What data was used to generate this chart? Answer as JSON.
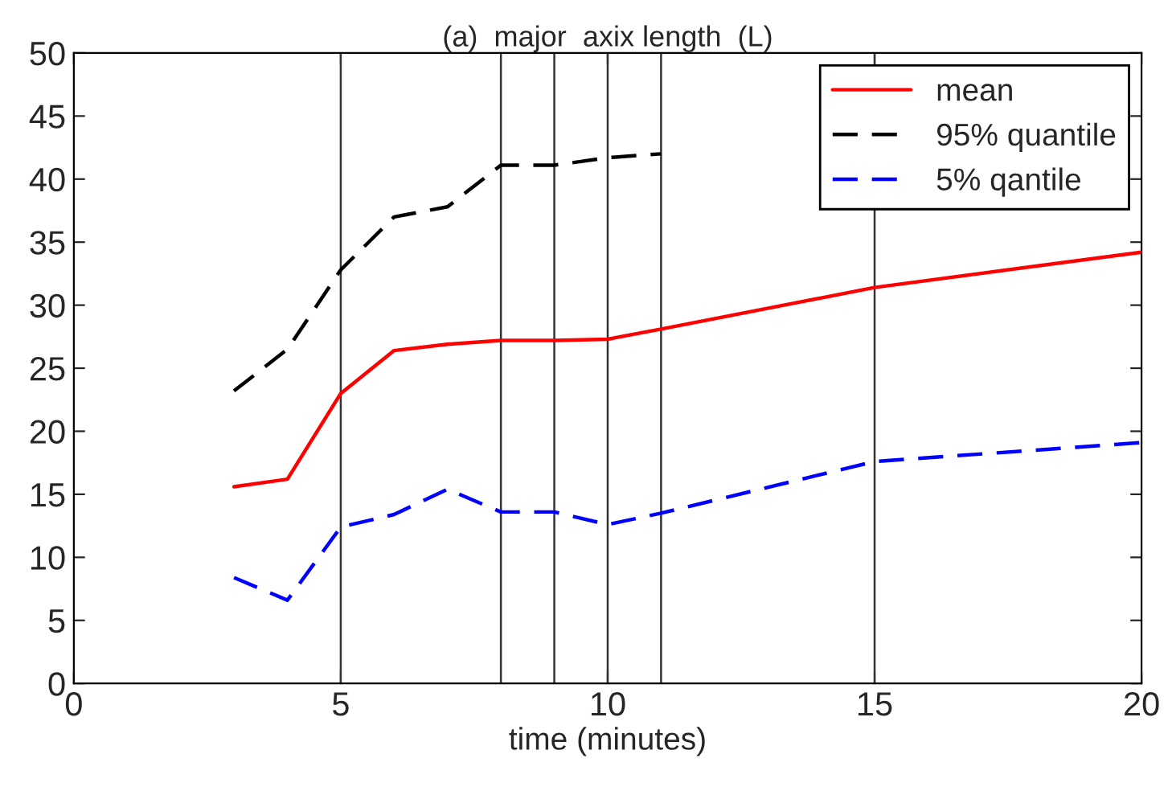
{
  "chart_data": {
    "type": "line",
    "title": "(a)  major  axix length  (L)",
    "xlabel": "time (minutes)",
    "x": [
      3,
      4,
      5,
      6,
      7,
      8,
      9,
      10,
      11,
      15,
      20
    ],
    "series": [
      {
        "name": "mean",
        "color": "#ff0000",
        "line_style": "solid",
        "values": [
          15.6,
          16.2,
          23.0,
          26.4,
          26.9,
          27.2,
          27.2,
          27.3,
          28.1,
          31.4,
          34.2
        ]
      },
      {
        "name": "95% quantile",
        "color": "#000000",
        "line_style": "dashed",
        "values": [
          23.2,
          26.5,
          32.8,
          37.0,
          37.8,
          41.1,
          41.1,
          41.7,
          42.0,
          null,
          null
        ]
      },
      {
        "name": "5% qantile",
        "color": "#0000ff",
        "line_style": "dashed",
        "values": [
          8.4,
          6.6,
          12.4,
          13.4,
          15.4,
          13.6,
          13.6,
          12.6,
          13.5,
          17.6,
          19.1
        ]
      }
    ],
    "xlim": [
      0,
      20
    ],
    "ylim": [
      0,
      50
    ],
    "xticks": [
      0,
      5,
      10,
      15,
      20
    ],
    "yticks": [
      0,
      5,
      10,
      15,
      20,
      25,
      30,
      35,
      40,
      45,
      50
    ],
    "ref_lines": [
      {
        "axis": "x",
        "value": 5,
        "color": "#333333"
      },
      {
        "axis": "x",
        "value": 8,
        "color": "#333333"
      },
      {
        "axis": "x",
        "value": 9,
        "color": "#333333"
      },
      {
        "axis": "x",
        "value": 10,
        "color": "#333333"
      },
      {
        "axis": "x",
        "value": 11,
        "color": "#333333"
      },
      {
        "axis": "x",
        "value": 15,
        "color": "#333333"
      }
    ],
    "grid": false,
    "legend": "top right",
    "marker": "none"
  }
}
